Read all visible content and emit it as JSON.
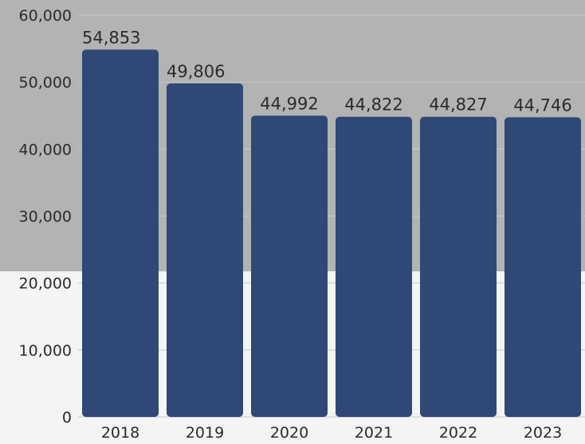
{
  "chart_data": {
    "type": "bar",
    "title": "",
    "xlabel": "",
    "ylabel": "",
    "categories": [
      "2018",
      "2019",
      "2020",
      "2021",
      "2022",
      "2023"
    ],
    "values": [
      54853,
      49806,
      44992,
      44822,
      44827,
      44746
    ],
    "value_labels": [
      "54,853",
      "49,806",
      "44,992",
      "44,822",
      "44,827",
      "44,746"
    ],
    "ylim": [
      0,
      60000
    ],
    "y_ticks": [
      0,
      10000,
      20000,
      30000,
      40000,
      50000,
      60000
    ],
    "y_tick_labels": [
      "0",
      "10,000",
      "20,000",
      "30,000",
      "40,000",
      "50,000",
      "60,000"
    ],
    "grid": true,
    "colors": {
      "bar": "#2f4876",
      "band": "#b3b3b3",
      "background": "#f4f4f4",
      "grid": "#c9c9c9",
      "text": "#2b2b2b"
    }
  }
}
